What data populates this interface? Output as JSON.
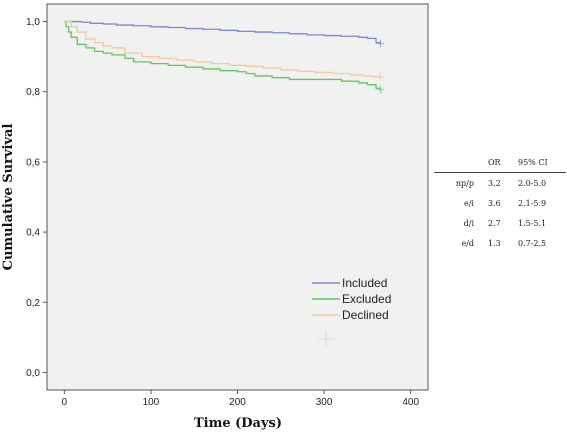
{
  "chart_data": {
    "type": "line",
    "xlabel": "Time (Days)",
    "ylabel": "Cumulative Survival",
    "xlim": [
      -20,
      420
    ],
    "ylim": [
      -0.05,
      1.05
    ],
    "x_ticks": [
      {
        "value": 0,
        "label": "0"
      },
      {
        "value": 100,
        "label": "100"
      },
      {
        "value": 200,
        "label": "200"
      },
      {
        "value": 300,
        "label": "300"
      },
      {
        "value": 400,
        "label": "400"
      }
    ],
    "y_ticks": [
      {
        "value": 0.0,
        "label": "0,0"
      },
      {
        "value": 0.2,
        "label": "0,2"
      },
      {
        "value": 0.4,
        "label": "0,4"
      },
      {
        "value": 0.6,
        "label": "0,6"
      },
      {
        "value": 0.8,
        "label": "0,8"
      },
      {
        "value": 1.0,
        "label": "1,0"
      }
    ],
    "grid": false,
    "legend_position": "bottom-right",
    "series": [
      {
        "name": "Included",
        "color": "#7b86d8",
        "x": [
          0,
          10,
          20,
          30,
          45,
          60,
          80,
          100,
          120,
          140,
          160,
          180,
          200,
          220,
          240,
          260,
          280,
          300,
          320,
          340,
          350,
          360,
          365
        ],
        "y": [
          1.0,
          1.0,
          0.998,
          0.995,
          0.993,
          0.99,
          0.988,
          0.985,
          0.983,
          0.98,
          0.978,
          0.975,
          0.972,
          0.97,
          0.968,
          0.965,
          0.962,
          0.96,
          0.958,
          0.955,
          0.952,
          0.94,
          0.937
        ]
      },
      {
        "name": "Excluded",
        "color": "#5ec85e",
        "x": [
          0,
          2,
          5,
          8,
          15,
          25,
          35,
          45,
          55,
          70,
          80,
          100,
          120,
          140,
          160,
          180,
          200,
          210,
          220,
          240,
          260,
          280,
          300,
          320,
          340,
          350,
          360,
          365
        ],
        "y": [
          1.0,
          0.985,
          0.97,
          0.955,
          0.935,
          0.925,
          0.915,
          0.91,
          0.905,
          0.895,
          0.885,
          0.88,
          0.875,
          0.87,
          0.865,
          0.86,
          0.857,
          0.852,
          0.845,
          0.84,
          0.835,
          0.835,
          0.835,
          0.83,
          0.825,
          0.82,
          0.81,
          0.806
        ]
      },
      {
        "name": "Declined",
        "color": "#f0c89a",
        "x": [
          0,
          8,
          15,
          25,
          35,
          45,
          55,
          70,
          90,
          110,
          130,
          150,
          170,
          190,
          210,
          230,
          250,
          270,
          290,
          310,
          330,
          345,
          355,
          365
        ],
        "y": [
          1.0,
          0.985,
          0.97,
          0.95,
          0.94,
          0.93,
          0.925,
          0.91,
          0.9,
          0.895,
          0.89,
          0.885,
          0.88,
          0.875,
          0.872,
          0.868,
          0.862,
          0.858,
          0.855,
          0.852,
          0.848,
          0.845,
          0.843,
          0.842
        ]
      }
    ]
  },
  "or_table": {
    "headers": [
      "",
      "OR",
      "95% CI"
    ],
    "rows": [
      [
        "np/p",
        "3.2",
        "2.0-5.0"
      ],
      [
        "e/i",
        "3.6",
        "2.1-5.9"
      ],
      [
        "d/i",
        "2.7",
        "1.5-5.1"
      ],
      [
        "e/d",
        "1.3",
        "0.7-2.5"
      ]
    ]
  }
}
